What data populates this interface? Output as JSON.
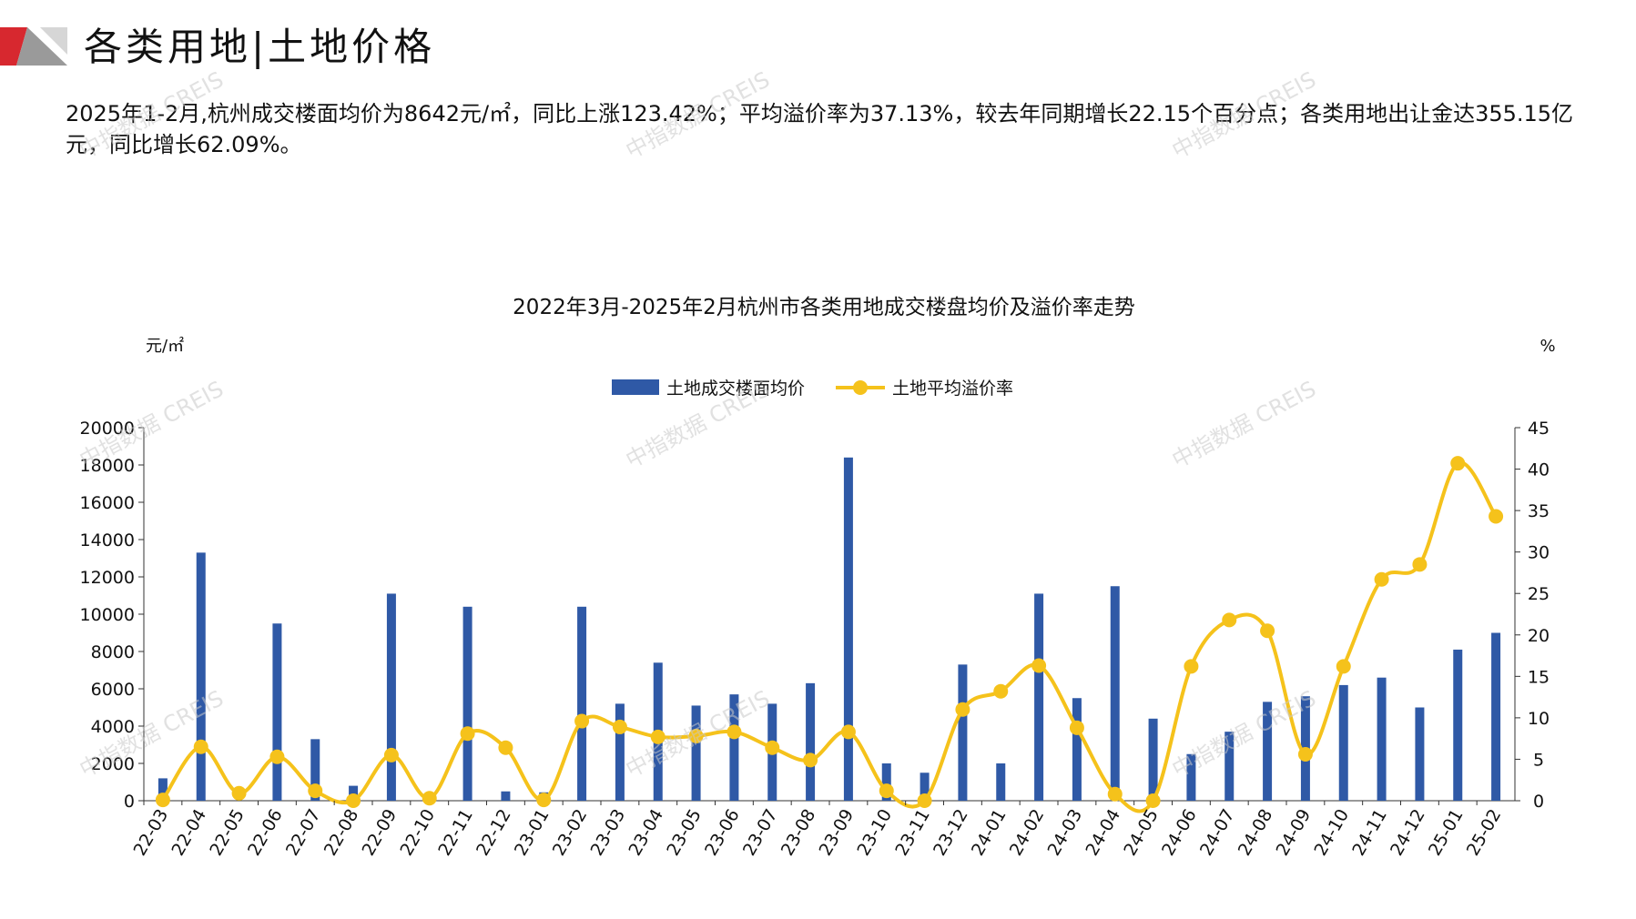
{
  "header": {
    "title": "各类用地|土地价格",
    "summary": "2025年1-2月,杭州成交楼面均价为8642元/㎡，同比上涨123.42%；平均溢价率为37.13%，较去年同期增长22.15个百分点；各类用地出让金达355.15亿元，同比增长62.09%。"
  },
  "watermark": "中指数据 CREIS",
  "colors": {
    "bar": "#2f59a6",
    "line": "#f5c21b",
    "logo_red": "#d7282f",
    "logo_grey": "#9a9a9a"
  },
  "chart_data": {
    "type": "bar",
    "title": "2022年3月-2025年2月杭州市各类用地成交楼盘均价及溢价率走势",
    "y_left_unit": "元/㎡",
    "y_right_unit": "%",
    "ylim_left": [
      0,
      20000
    ],
    "yticks_left": [
      0,
      2000,
      4000,
      6000,
      8000,
      10000,
      12000,
      14000,
      16000,
      18000,
      20000
    ],
    "ylim_right": [
      0,
      45
    ],
    "yticks_right": [
      0,
      5,
      10,
      15,
      20,
      25,
      30,
      35,
      40,
      45
    ],
    "legend_position": "top-center",
    "grid": false,
    "categories": [
      "22-03",
      "22-04",
      "22-05",
      "22-06",
      "22-07",
      "22-08",
      "22-09",
      "22-10",
      "22-11",
      "22-12",
      "23-01",
      "23-02",
      "23-03",
      "23-04",
      "23-05",
      "23-06",
      "23-07",
      "23-08",
      "23-09",
      "23-10",
      "23-11",
      "23-12",
      "24-01",
      "24-02",
      "24-03",
      "24-04",
      "24-05",
      "24-06",
      "24-07",
      "24-08",
      "24-09",
      "24-10",
      "24-11",
      "24-12",
      "25-01",
      "25-02"
    ],
    "series": [
      {
        "name": "土地成交楼面均价",
        "type": "bar",
        "axis": "left",
        "values": [
          1200,
          13300,
          0,
          9500,
          3300,
          800,
          11100,
          0,
          10400,
          500,
          450,
          10400,
          5200,
          7400,
          5100,
          5700,
          5200,
          6300,
          18400,
          2000,
          1500,
          7300,
          2000,
          11100,
          5500,
          11500,
          4400,
          2500,
          3700,
          5300,
          5600,
          6200,
          6600,
          5000,
          8100,
          9000
        ]
      },
      {
        "name": "土地平均溢价率",
        "type": "line",
        "axis": "right",
        "values": [
          0.1,
          6.5,
          0.9,
          5.3,
          1.2,
          0.0,
          5.5,
          0.3,
          8.1,
          6.4,
          0.1,
          9.6,
          8.9,
          7.7,
          7.8,
          8.3,
          6.4,
          4.9,
          8.3,
          1.2,
          0.0,
          11.0,
          13.2,
          16.3,
          8.8,
          0.8,
          0.0,
          16.2,
          21.8,
          20.5,
          5.6,
          16.2,
          26.7,
          28.5,
          40.7,
          34.3
        ]
      }
    ]
  }
}
